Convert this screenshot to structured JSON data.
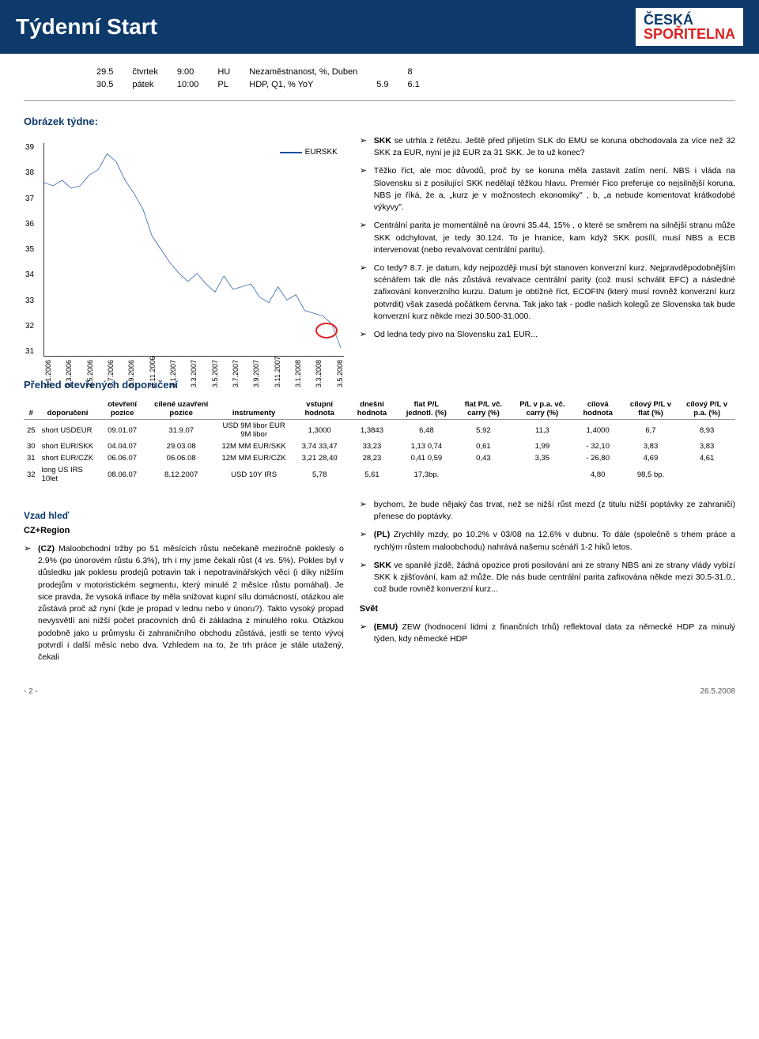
{
  "header": {
    "title": "Týdenní Start",
    "logo_top": "ČESKÁ",
    "logo_bottom": "SPOŘITELNA"
  },
  "calendar": {
    "rows": [
      {
        "date": "29.5",
        "day": "čtvrtek",
        "time": "9:00",
        "cc": "HU",
        "indicator": "Nezaměstnanost, %, Duben",
        "v1": "",
        "v2": "8"
      },
      {
        "date": "30.5",
        "day": "pátek",
        "time": "10:00",
        "cc": "PL",
        "indicator": "HDP, Q1, % YoY",
        "v1": "5.9",
        "v2": "6.1"
      }
    ]
  },
  "chart_title": "Obrázek týdne:",
  "chart": {
    "legend": "EURSKK",
    "ylim": [
      31,
      39
    ],
    "yticks": [
      31,
      32,
      33,
      34,
      35,
      36,
      37,
      38,
      39
    ],
    "xlabels": [
      "3.1.2006",
      "3.3.2006",
      "3.5.2006",
      "3.7.2006",
      "3.9.2006",
      "3.11.2006",
      "3.1.2007",
      "3.3.2007",
      "3.5.2007",
      "3.7.2007",
      "3.9.2007",
      "3.11.2007",
      "3.1.2008",
      "3.3.2008",
      "3.5.2008"
    ],
    "line_color": "#1a4fa0",
    "points": [
      [
        0,
        37.5
      ],
      [
        3,
        37.4
      ],
      [
        6,
        37.6
      ],
      [
        9,
        37.3
      ],
      [
        12,
        37.4
      ],
      [
        15,
        37.8
      ],
      [
        18,
        38.0
      ],
      [
        21,
        38.6
      ],
      [
        24,
        38.3
      ],
      [
        27,
        37.6
      ],
      [
        30,
        37.1
      ],
      [
        33,
        36.5
      ],
      [
        36,
        35.5
      ],
      [
        39,
        35.0
      ],
      [
        42,
        34.5
      ],
      [
        45,
        34.1
      ],
      [
        48,
        33.8
      ],
      [
        51,
        34.1
      ],
      [
        54,
        33.7
      ],
      [
        57,
        33.4
      ],
      [
        60,
        34.0
      ],
      [
        63,
        33.5
      ],
      [
        66,
        33.6
      ],
      [
        69,
        33.7
      ],
      [
        72,
        33.2
      ],
      [
        75,
        33.0
      ],
      [
        78,
        33.6
      ],
      [
        81,
        33.1
      ],
      [
        84,
        33.3
      ],
      [
        87,
        32.7
      ],
      [
        90,
        32.6
      ],
      [
        93,
        32.5
      ],
      [
        96,
        32.2
      ],
      [
        99,
        31.3
      ]
    ]
  },
  "bullets_right": [
    "SKK se utrhla z řetězu. Ještě před přijetím SLK do EMU se koruna obchodovala za více než 32 SKK za EUR, nyní je již EUR za 31 SKK. Je to už konec?",
    "Těžko říct, ale moc důvodů, proč by se koruna měla zastavit zatím není. NBS i vláda na Slovensku si z posilující SKK nedělají těžkou hlavu. Premiér Fico preferuje co nejsilnější koruna, NBS je říká, že a, „kurz je v možnostech ekonomiky\" , b, „a nebude komentovat krátkodobé výkyvy\".",
    "Centrální parita je momentálně na úrovni 35.44, 15% , o které se směrem na silnější stranu může SKK odchylovat, je tedy 30.124. To je hranice, kam když SKK posílí, musí NBS a ECB intervenovat (nebo revalvovat centrální paritu).",
    "Co tedy? 8.7. je datum, kdy nejpozději musí být stanoven konverzní kurz. Nejpravděpodobnějším scénářem tak dle nás zůstává revalvace centrální parity (což musí schválit EFC) a následné zafixování konverzního kurzu. Datum je obtížné říct, ECOFIN (který musí rovněž konverzní kurz potvrdit) však zasedá počátkem června. Tak jako tak - podle našich kolegů ze Slovenska tak bude konverzní kurz někde mezi 30.500-31.000.",
    "Od ledna tedy pivo na Slovensku za1 EUR..."
  ],
  "rec_title": "Přehled otevřených doporučení",
  "rec_headers": [
    "#",
    "doporučení",
    "otevření pozice",
    "cílené uzavření pozice",
    "instrumenty",
    "vstupní hodnota",
    "dnešní hodnota",
    "flat P/L jednotl. (%)",
    "flat P/L vč. carry (%)",
    "P/L v p.a. vč. carry (%)",
    "cílová hodnota",
    "cílový P/L v flat (%)",
    "cílový P/L v p.a. (%)"
  ],
  "rec_rows": [
    {
      "n": "25",
      "rec": "short USDEUR",
      "open": "09.01.07",
      "close": "31.9.07",
      "instr": "USD 9M libor EUR 9M libor",
      "entry": "1,3000",
      "now": "1,3843",
      "fpl": "6,48",
      "fplc": "5,92",
      "plpa": "11,3",
      "tgt": "1,4000",
      "tfpl": "6,7",
      "tpa": "8,93"
    },
    {
      "n": "30",
      "rec": "short EUR/SKK",
      "open": "04.04.07",
      "close": "29.03.08",
      "instr": "12M MM EUR/SKK",
      "entry": "3,74 33,47",
      "now": "33,23",
      "fpl": "1,13 0,74",
      "fplc": "0,61",
      "plpa": "1,99",
      "tgt": "- 32,10",
      "tfpl": "3,83",
      "tpa": "3,83"
    },
    {
      "n": "31",
      "rec": "short EUR/CZK",
      "open": "06.06.07",
      "close": "06.06.08",
      "instr": "12M MM EUR/CZK",
      "entry": "3,21 28,40",
      "now": "28,23",
      "fpl": "0,41 0,59",
      "fplc": "0,43",
      "plpa": "3,35",
      "tgt": "- 26,80",
      "tfpl": "4,69",
      "tpa": "4,61"
    },
    {
      "n": "32",
      "rec": "long US IRS 10let",
      "open": "08.06.07",
      "close": "8.12.2007",
      "instr": "USD 10Y IRS",
      "entry": "5,78",
      "now": "5,61",
      "fpl": "17,3bp.",
      "fplc": "",
      "plpa": "",
      "tgt": "4,80",
      "tfpl": "98,5 bp.",
      "tpa": ""
    }
  ],
  "vzad": {
    "title": "Vzad hleď",
    "cz_title": "CZ+Region"
  },
  "bullets_left": [
    "(CZ) Maloobchodní tržby po 51 měsících růstu nečekaně meziročně poklesly o 2.9% (po únorovém růstu 6.3%), trh i my jsme čekali růst (4 vs. 5%). Pokles byl v důsledku jak poklesu prodejů potravin tak i nepotravinářských věcí (i díky nižším prodejům v motoristickém segmentu, který minulé 2 měsíce růstu pomáhal). Je sice pravda, že vysoká inflace by měla snižovat kupní sílu domácností, otázkou ale zůstává proč až nyní (kde je propad v lednu nebo v únoru?). Takto vysoký propad nevysvětlí ani nižší počet pracovních dnů či základna z minulého roku. Otázkou podobně jako u průmyslu či zahraničního obchodu zůstává, jestli se tento vývoj potvrdí i další měsíc nebo dva. Vzhledem na to, že trh práce je stále utažený, čekali"
  ],
  "bullets_right2": [
    "bychom, že bude nějaký čas trvat, než se nižší růst mezd (z titulu nižší poptávky ze zahraničí) přenese do poptávky.",
    "(PL) Zrychlily mzdy, po 10.2% v 03/08 na 12.6% v dubnu. To dále (společně s trhem práce a rychlým růstem maloobchodu) nahrává našemu scénáři 1-2 hiků letos.",
    "SKK ve spanilé jízdě, žádná opozice proti posilování ani ze strany NBS ani ze strany vlády vybízí SKK k zjišťování, kam až může. Dle nás bude centrální parita zafixována někde mezi 30.5-31.0., což bude rovněž konverzní kurz..."
  ],
  "svet_title": "Svět",
  "bullets_svet": [
    "(EMU) ZEW (hodnocení lidmi z finančních trhů) reflektoval data za německé HDP za minulý týden, kdy německé HDP"
  ],
  "footer": {
    "page": "- 2 -",
    "date": "26.5.2008"
  }
}
